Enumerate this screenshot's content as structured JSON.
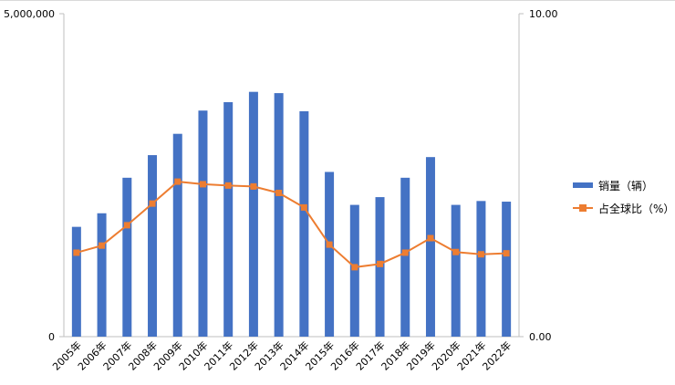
{
  "chart_data": {
    "type": "bar",
    "categories": [
      "2005年",
      "2006年",
      "2007年",
      "2008年",
      "2009年",
      "2010年",
      "2011年",
      "2012年",
      "2013年",
      "2014年",
      "2015年",
      "2016年",
      "2017年",
      "2018年",
      "2019年",
      "2020年",
      "2021年",
      "2022年"
    ],
    "series": [
      {
        "name": "销量（辆）",
        "type": "bar",
        "axis": "left",
        "color": "#4472C4",
        "values": [
          1700000,
          1910000,
          2460000,
          2810000,
          3140000,
          3500000,
          3630000,
          3790000,
          3770000,
          3490000,
          2550000,
          2040000,
          2160000,
          2460000,
          2780000,
          2040000,
          2100000,
          2090000
        ]
      },
      {
        "name": "占全球比（%）",
        "type": "line",
        "axis": "right",
        "color": "#ED7D31",
        "values": [
          2.6,
          2.82,
          3.45,
          4.12,
          4.8,
          4.72,
          4.68,
          4.65,
          4.45,
          4.0,
          2.85,
          2.15,
          2.25,
          2.6,
          3.05,
          2.62,
          2.55,
          2.58
        ]
      }
    ],
    "yaxis_left": {
      "min": 0,
      "max": 5000000,
      "ticks": [
        "0",
        "5,000,000"
      ]
    },
    "yaxis_right": {
      "min": 0,
      "max": 10,
      "ticks": [
        "0.00",
        "10.00"
      ]
    },
    "grid": false,
    "legend_position": "right"
  }
}
